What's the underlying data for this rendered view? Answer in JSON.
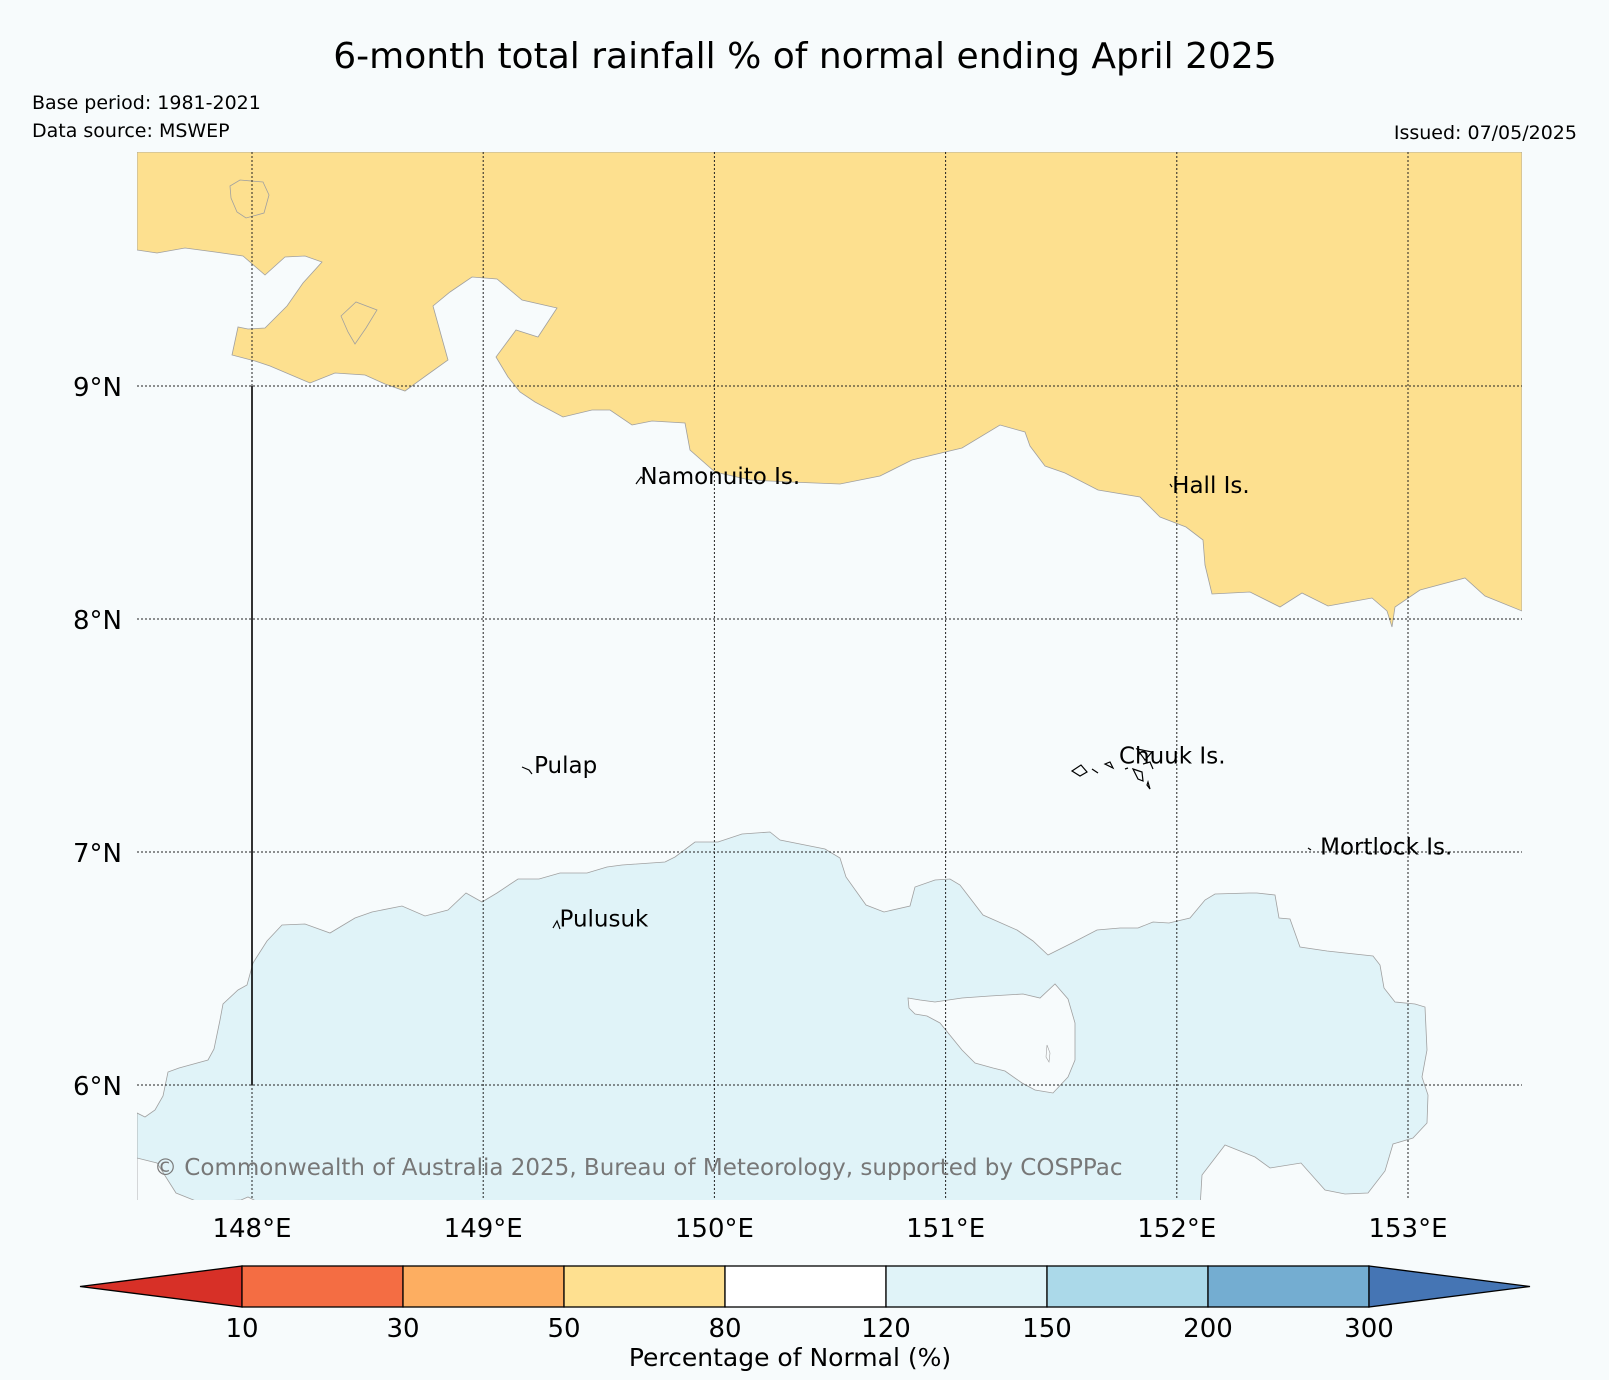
{
  "title": "6-month total rainfall % of normal ending April 2025",
  "base_period": "Base period: 1981-2021",
  "data_source": "Data source: MSWEP",
  "issued": "Issued: 07/05/2025",
  "copyright": "© Commonwealth of Australia 2025, Bureau of Meteorology, supported by COSPPac",
  "map": {
    "lon_range": [
      147.5,
      153.5
    ],
    "lat_range": [
      5.5,
      9.95
    ],
    "lon_ticks": [
      {
        "value": 148,
        "label": "148°E"
      },
      {
        "value": 149,
        "label": "149°E"
      },
      {
        "value": 150,
        "label": "150°E"
      },
      {
        "value": 151,
        "label": "151°E"
      },
      {
        "value": 152,
        "label": "152°E"
      },
      {
        "value": 153,
        "label": "153°E"
      }
    ],
    "lat_ticks": [
      {
        "value": 9,
        "label": "9°N"
      },
      {
        "value": 8,
        "label": "8°N"
      },
      {
        "value": 7,
        "label": "7°N"
      },
      {
        "value": 6,
        "label": "6°N"
      }
    ],
    "gridlines": true,
    "colors": {
      "ocean_bg": "#f7fbfc",
      "dry_50_80": "#fde08f",
      "wet_120_150": "#e0f3f8"
    },
    "islands": [
      {
        "name": "Namonuito Is.",
        "lon": 149.68,
        "lat": 8.58
      },
      {
        "name": "Hall Is.",
        "lon": 151.98,
        "lat": 8.54
      },
      {
        "name": "Pulap",
        "lon": 149.22,
        "lat": 7.34
      },
      {
        "name": "Chuuk Is.",
        "lon": 151.75,
        "lat": 7.38
      },
      {
        "name": "Mortlock Is.",
        "lon": 152.62,
        "lat": 6.99
      },
      {
        "name": "Pulusuk",
        "lon": 149.33,
        "lat": 6.68
      }
    ]
  },
  "legend": {
    "label": "Percentage of Normal (%)",
    "bins": [
      {
        "color": "#d73027",
        "range": "<10"
      },
      {
        "color": "#f46d43",
        "range": "10-30"
      },
      {
        "color": "#fdae61",
        "range": "30-50"
      },
      {
        "color": "#fee090",
        "range": "50-80"
      },
      {
        "color": "#ffffff",
        "range": "80-120"
      },
      {
        "color": "#e0f3f8",
        "range": "120-150"
      },
      {
        "color": "#abd9e9",
        "range": "150-200"
      },
      {
        "color": "#74add1",
        "range": "200-300"
      },
      {
        "color": "#4575b4",
        "range": ">300"
      }
    ],
    "ticks": [
      "10",
      "30",
      "50",
      "80",
      "120",
      "150",
      "200",
      "300"
    ]
  }
}
